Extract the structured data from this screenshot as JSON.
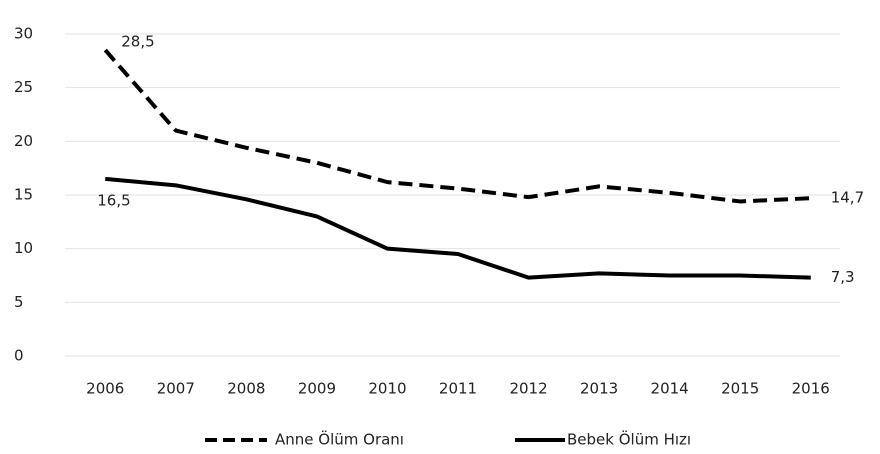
{
  "chart_data": {
    "type": "line",
    "categories": [
      "2006",
      "2007",
      "2008",
      "2009",
      "2010",
      "2011",
      "2012",
      "2013",
      "2014",
      "2015",
      "2016"
    ],
    "series": [
      {
        "name": "Anne Ölüm Oranı",
        "color": "#000000",
        "dash": true,
        "values": [
          28.5,
          21.0,
          19.4,
          18.0,
          16.2,
          15.6,
          14.8,
          15.8,
          15.2,
          14.4,
          14.7
        ],
        "value_labels": [
          "28,5",
          null,
          null,
          null,
          null,
          null,
          null,
          null,
          null,
          null,
          "14,7"
        ]
      },
      {
        "name": "Bebek Ölüm Hızı",
        "color": "#000000",
        "dash": false,
        "values": [
          16.5,
          15.9,
          14.6,
          13.0,
          10.0,
          9.5,
          7.3,
          7.7,
          7.5,
          7.5,
          7.3
        ],
        "value_labels": [
          "16,5",
          null,
          null,
          null,
          null,
          null,
          null,
          null,
          null,
          null,
          "7,3"
        ]
      }
    ],
    "ylim": [
      0,
      30
    ],
    "yticks": [
      0,
      5,
      10,
      15,
      20,
      25,
      30
    ],
    "grid": true,
    "legend": "bottom"
  }
}
